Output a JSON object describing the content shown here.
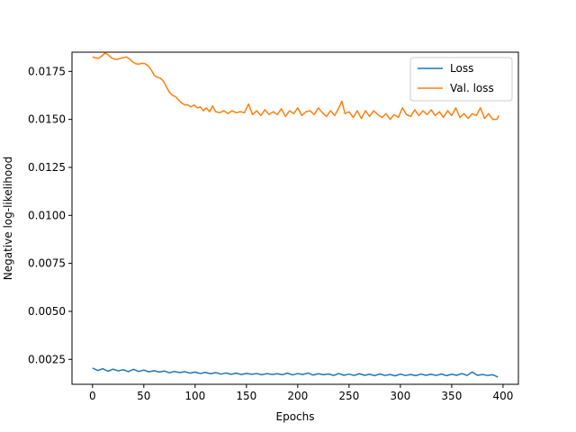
{
  "chart_data": {
    "type": "line",
    "title": "",
    "xlabel": "Epochs",
    "ylabel": "Negative log-likelihood",
    "xlim": [
      -20,
      415
    ],
    "ylim": [
      0.0012,
      0.0185
    ],
    "grid": false,
    "legend_position": "top-right",
    "xticks": [
      0,
      50,
      100,
      150,
      200,
      250,
      300,
      350,
      400
    ],
    "xtick_labels": [
      "0",
      "50",
      "100",
      "150",
      "200",
      "250",
      "300",
      "350",
      "400"
    ],
    "yticks": [
      0.0025,
      0.005,
      0.0075,
      0.01,
      0.0125,
      0.015,
      0.0175
    ],
    "ytick_labels": [
      "0.0025",
      "0.0050",
      "0.0075",
      "0.0100",
      "0.0125",
      "0.0150",
      "0.0175"
    ],
    "series": [
      {
        "name": "Loss",
        "color": "#1f77b4",
        "x": [
          0,
          5,
          10,
          15,
          20,
          25,
          30,
          35,
          40,
          45,
          50,
          55,
          60,
          65,
          70,
          75,
          80,
          85,
          90,
          95,
          100,
          105,
          110,
          115,
          120,
          125,
          130,
          135,
          140,
          145,
          150,
          155,
          160,
          165,
          170,
          175,
          180,
          185,
          190,
          195,
          200,
          205,
          210,
          215,
          220,
          225,
          230,
          235,
          240,
          245,
          250,
          255,
          260,
          265,
          270,
          275,
          280,
          285,
          290,
          295,
          300,
          305,
          310,
          315,
          320,
          325,
          330,
          335,
          340,
          345,
          350,
          355,
          360,
          365,
          370,
          375,
          380,
          385,
          390,
          395
        ],
        "values": [
          0.00205,
          0.00192,
          0.00201,
          0.00188,
          0.00199,
          0.0019,
          0.00196,
          0.00186,
          0.00198,
          0.00187,
          0.00194,
          0.00185,
          0.00191,
          0.00184,
          0.00189,
          0.0018,
          0.00187,
          0.00181,
          0.00186,
          0.00178,
          0.00184,
          0.00176,
          0.00182,
          0.00175,
          0.00181,
          0.00173,
          0.00179,
          0.00172,
          0.00178,
          0.00171,
          0.00177,
          0.00172,
          0.00176,
          0.0017,
          0.00176,
          0.00171,
          0.00175,
          0.0017,
          0.00178,
          0.00169,
          0.00176,
          0.00171,
          0.00179,
          0.00168,
          0.00175,
          0.0017,
          0.00174,
          0.00166,
          0.00176,
          0.00167,
          0.00173,
          0.00166,
          0.00175,
          0.00167,
          0.00172,
          0.00165,
          0.00174,
          0.00166,
          0.00171,
          0.00164,
          0.00173,
          0.00166,
          0.00171,
          0.00165,
          0.00173,
          0.00167,
          0.00172,
          0.00166,
          0.00174,
          0.00165,
          0.00172,
          0.00167,
          0.00176,
          0.00166,
          0.00184,
          0.00167,
          0.00171,
          0.00166,
          0.0017,
          0.00158
        ]
      },
      {
        "name": "Val. loss",
        "color": "#ff7f0e",
        "x": [
          0,
          3,
          6,
          9,
          12,
          15,
          18,
          21,
          24,
          27,
          30,
          33,
          36,
          39,
          42,
          45,
          48,
          51,
          54,
          57,
          60,
          63,
          66,
          69,
          72,
          75,
          78,
          81,
          84,
          87,
          90,
          93,
          96,
          99,
          102,
          105,
          108,
          111,
          114,
          117,
          120,
          124,
          128,
          132,
          136,
          140,
          144,
          148,
          152,
          156,
          160,
          164,
          168,
          172,
          176,
          180,
          184,
          188,
          192,
          196,
          200,
          204,
          208,
          212,
          216,
          220,
          224,
          228,
          232,
          236,
          240,
          243,
          246,
          250,
          254,
          258,
          262,
          266,
          270,
          274,
          278,
          282,
          286,
          290,
          294,
          298,
          302,
          306,
          310,
          314,
          318,
          322,
          326,
          330,
          334,
          338,
          342,
          346,
          350,
          354,
          358,
          362,
          366,
          370,
          374,
          378,
          382,
          386,
          390,
          394,
          396
        ],
        "values": [
          0.01825,
          0.0182,
          0.01818,
          0.0183,
          0.01845,
          0.01838,
          0.01822,
          0.01815,
          0.01812,
          0.01818,
          0.01822,
          0.01825,
          0.01815,
          0.018,
          0.0179,
          0.01788,
          0.01792,
          0.0179,
          0.0178,
          0.0176,
          0.0173,
          0.0172,
          0.01715,
          0.017,
          0.0167,
          0.0164,
          0.01625,
          0.01618,
          0.016,
          0.01585,
          0.01575,
          0.01575,
          0.01565,
          0.01575,
          0.0156,
          0.01565,
          0.01545,
          0.0156,
          0.0154,
          0.0157,
          0.0154,
          0.01535,
          0.01545,
          0.0153,
          0.01545,
          0.01535,
          0.0154,
          0.01535,
          0.0158,
          0.01525,
          0.01545,
          0.0152,
          0.0155,
          0.01525,
          0.0154,
          0.01525,
          0.01555,
          0.01515,
          0.01545,
          0.0153,
          0.0156,
          0.0152,
          0.0154,
          0.01545,
          0.01525,
          0.0156,
          0.01535,
          0.01515,
          0.01545,
          0.0152,
          0.0156,
          0.01595,
          0.0153,
          0.0154,
          0.0151,
          0.01545,
          0.01505,
          0.01545,
          0.01515,
          0.01545,
          0.01525,
          0.0151,
          0.0153,
          0.015,
          0.01525,
          0.0151,
          0.0156,
          0.01525,
          0.01515,
          0.0155,
          0.0152,
          0.01545,
          0.01525,
          0.0155,
          0.0152,
          0.0154,
          0.0151,
          0.01545,
          0.0152,
          0.0156,
          0.0151,
          0.0153,
          0.01505,
          0.0153,
          0.0152,
          0.0156,
          0.01505,
          0.0153,
          0.015,
          0.015,
          0.0152
        ]
      }
    ]
  }
}
